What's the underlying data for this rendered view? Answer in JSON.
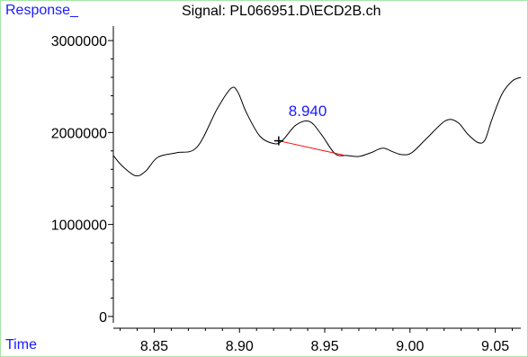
{
  "chart_data": {
    "type": "line",
    "title": "Signal: PL066951.D\\ECD2B.ch",
    "ylabel": "Response_",
    "xlabel": "Time",
    "xlim": [
      8.826,
      9.065
    ],
    "ylim": [
      -50000,
      3050000
    ],
    "x_ticks": [
      {
        "value": 8.85,
        "label": "8.85"
      },
      {
        "value": 8.9,
        "label": "8.90"
      },
      {
        "value": 8.95,
        "label": "8.95"
      },
      {
        "value": 9.0,
        "label": "9.00"
      },
      {
        "value": 9.05,
        "label": "9.05"
      }
    ],
    "y_ticks": [
      {
        "value": 0,
        "label": "0"
      },
      {
        "value": 1000000,
        "label": "1000000"
      },
      {
        "value": 2000000,
        "label": "2000000"
      },
      {
        "value": 3000000,
        "label": "3000000"
      }
    ],
    "series": [
      {
        "x": [
          8.826,
          8.831,
          8.839,
          8.845,
          8.852,
          8.863,
          8.875,
          8.887,
          8.895,
          8.899,
          8.904,
          8.912,
          8.92,
          8.925,
          8.933,
          8.941,
          8.948,
          8.956,
          8.963,
          8.97,
          8.977,
          8.984,
          8.99,
          8.995,
          9.001,
          9.01,
          9.021,
          9.028,
          9.034,
          9.04,
          9.044,
          9.048,
          9.054,
          9.06,
          9.065
        ],
        "y": [
          1750000,
          1640000,
          1530000,
          1580000,
          1730000,
          1780000,
          1840000,
          2260000,
          2480000,
          2440000,
          2220000,
          1960000,
          1880000,
          1910000,
          2080000,
          2120000,
          1980000,
          1770000,
          1750000,
          1740000,
          1780000,
          1830000,
          1790000,
          1760000,
          1780000,
          1940000,
          2130000,
          2110000,
          1980000,
          1890000,
          1920000,
          2140000,
          2420000,
          2560000,
          2600000
        ]
      }
    ],
    "annotations": [
      {
        "label": "8.940",
        "x": 8.94,
        "y": 2180000
      }
    ],
    "baseline": {
      "x": [
        8.923,
        8.962
      ],
      "y": [
        1910000,
        1750000
      ],
      "color": "#ff0000"
    },
    "peak_start_marker": {
      "x": 8.923,
      "y": 1910000
    },
    "colors": {
      "trace": "#000000",
      "baseline": "#ff0000",
      "labels": "#1a1aff",
      "frame": "#a8e6a8"
    }
  }
}
